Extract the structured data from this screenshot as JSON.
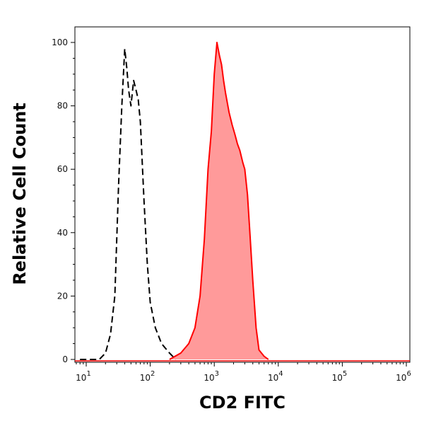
{
  "chart_data": {
    "type": "area",
    "xlabel": "CD2 FITC",
    "ylabel": "Relative Cell Count",
    "x_scale": "log",
    "xlim": [
      10,
      1000000
    ],
    "ylim": [
      0,
      100
    ],
    "x_ticks": [
      {
        "value": 10,
        "base": "10",
        "exp": "1"
      },
      {
        "value": 100,
        "base": "10",
        "exp": "2"
      },
      {
        "value": 1000,
        "base": "10",
        "exp": "3"
      },
      {
        "value": 10000,
        "base": "10",
        "exp": "4"
      },
      {
        "value": 100000,
        "base": "10",
        "exp": "5"
      },
      {
        "value": 1000000,
        "base": "10",
        "exp": "6"
      }
    ],
    "y_ticks": [
      "0",
      "20",
      "40",
      "60",
      "80",
      "100"
    ],
    "grid": false,
    "series": [
      {
        "style": "dashed-line",
        "color": "#000000",
        "x": [
          8,
          16,
          20,
          24,
          28,
          32,
          36,
          40,
          43,
          46,
          50,
          55,
          60,
          65,
          70,
          75,
          80,
          90,
          100,
          120,
          150,
          200,
          250
        ],
        "y": [
          0,
          0,
          2,
          8,
          20,
          55,
          80,
          98,
          92,
          85,
          80,
          88,
          85,
          82,
          75,
          62,
          50,
          30,
          18,
          10,
          5,
          2,
          0
        ]
      },
      {
        "style": "filled-area",
        "color": "#ff0000",
        "fill": "#ff9a9a",
        "x": [
          200,
          300,
          400,
          500,
          600,
          700,
          800,
          900,
          1000,
          1100,
          1200,
          1300,
          1400,
          1500,
          1700,
          1900,
          2100,
          2300,
          2500,
          2800,
          3000,
          3300,
          3600,
          4000,
          4500,
          5000,
          6000,
          7000
        ],
        "y": [
          0,
          2,
          5,
          10,
          20,
          38,
          60,
          72,
          90,
          100,
          96,
          93,
          88,
          84,
          78,
          74,
          71,
          68,
          66,
          62,
          60,
          52,
          40,
          25,
          10,
          3,
          1,
          0
        ]
      }
    ]
  }
}
